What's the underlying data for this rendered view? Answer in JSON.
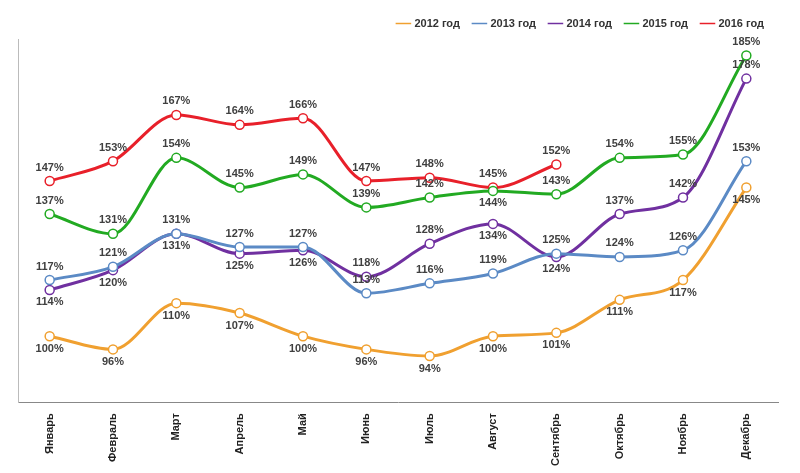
{
  "chart_data": {
    "type": "line",
    "categories": [
      "Январь",
      "Февраль",
      "Март",
      "Апрель",
      "Май",
      "Июнь",
      "Июль",
      "Август",
      "Сентябрь",
      "Октябрь",
      "Ноябрь",
      "Декабрь"
    ],
    "series": [
      {
        "name": "2012 год",
        "color": "#f0a030",
        "values": [
          100,
          96,
          110,
          107,
          100,
          96,
          94,
          100,
          101,
          111,
          117,
          145
        ],
        "value_labels": [
          "100%",
          "96%",
          "110%",
          "107%",
          "100%",
          "96%",
          "94%",
          "100%",
          "101%",
          "111%",
          "117%",
          "145%"
        ]
      },
      {
        "name": "2013 год",
        "color": "#5b8ac5",
        "values": [
          117,
          121,
          131,
          127,
          127,
          113,
          116,
          119,
          125,
          124,
          126,
          153
        ],
        "value_labels": [
          "117%",
          "121%",
          "131%",
          "127%",
          "127%",
          "113%",
          "116%",
          "119%",
          "125%",
          "124%",
          "126%",
          "153%"
        ]
      },
      {
        "name": "2014 год",
        "color": "#7030a0",
        "values": [
          114,
          120,
          131,
          125,
          126,
          118,
          128,
          134,
          124,
          137,
          142,
          178
        ],
        "value_labels": [
          "114%",
          "120%",
          "131%",
          "125%",
          "126%",
          "118%",
          "128%",
          "134%",
          "124%",
          "137%",
          "142%",
          "178%"
        ]
      },
      {
        "name": "2015 год",
        "color": "#22aa22",
        "values": [
          137,
          131,
          154,
          145,
          149,
          139,
          142,
          144,
          143,
          154,
          155,
          185
        ],
        "value_labels": [
          "137%",
          "131%",
          "154%",
          "145%",
          "149%",
          "139%",
          "142%",
          "144%",
          "143%",
          "154%",
          "155%",
          "185%"
        ]
      },
      {
        "name": "2016 год",
        "color": "#e8202a",
        "values": [
          147,
          153,
          167,
          164,
          166,
          147,
          148,
          145,
          152,
          null,
          null,
          null
        ],
        "value_labels": [
          "147%",
          "153%",
          "167%",
          "164%",
          "166%",
          "147%",
          "148%",
          "145%",
          "152%",
          null,
          null,
          null
        ]
      }
    ],
    "ylim": [
      80,
      190
    ],
    "yticks": [],
    "tick_labels": "x",
    "grid": false,
    "legend": "upper right",
    "data_labels": true,
    "marker": "circle",
    "line_style": "solid"
  }
}
